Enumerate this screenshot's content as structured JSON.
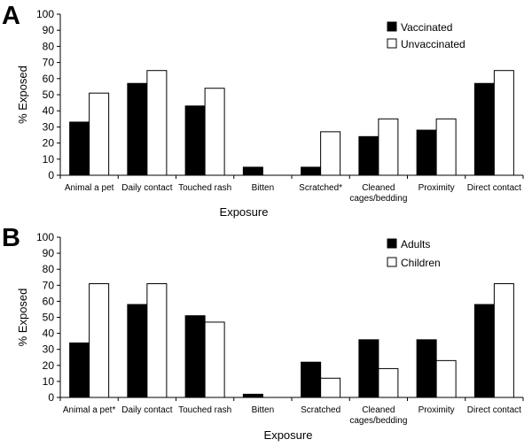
{
  "chart_data": [
    {
      "panel": "A",
      "type": "bar",
      "xlabel": "Exposure",
      "ylabel": "% Exposed",
      "ylim": [
        0,
        100
      ],
      "yticks": [
        0,
        10,
        20,
        30,
        40,
        50,
        60,
        70,
        80,
        90,
        100
      ],
      "grid": false,
      "legend_position": "top-right",
      "categories": [
        [
          "Animal a pet"
        ],
        [
          "Daily contact"
        ],
        [
          "Touched rash"
        ],
        [
          "Bitten"
        ],
        [
          "Scratched*"
        ],
        [
          "Cleaned",
          "cages/bedding"
        ],
        [
          "Proximity"
        ],
        [
          "Direct contact"
        ]
      ],
      "series": [
        {
          "name": "Vaccinated",
          "color": "#000000",
          "values": [
            33,
            57,
            43,
            5,
            5,
            24,
            28,
            57
          ]
        },
        {
          "name": "Unvaccinated",
          "color": "#ffffff",
          "values": [
            51,
            65,
            54,
            0,
            27,
            35,
            35,
            65
          ]
        }
      ]
    },
    {
      "panel": "B",
      "type": "bar",
      "xlabel": "Exposure",
      "ylabel": "% Exposed",
      "ylim": [
        0,
        100
      ],
      "yticks": [
        0,
        10,
        20,
        30,
        40,
        50,
        60,
        70,
        80,
        90,
        100
      ],
      "grid": false,
      "legend_position": "top-right",
      "categories": [
        [
          "Animal a pet*"
        ],
        [
          "Daily contact"
        ],
        [
          "Touched rash"
        ],
        [
          "Bitten"
        ],
        [
          "Scratched"
        ],
        [
          "Cleaned",
          "cages/bedding"
        ],
        [
          "Proximity"
        ],
        [
          "Direct contact"
        ]
      ],
      "series": [
        {
          "name": "Adults",
          "color": "#000000",
          "values": [
            34,
            58,
            51,
            2,
            22,
            36,
            36,
            58
          ]
        },
        {
          "name": "Children",
          "color": "#ffffff",
          "values": [
            71,
            71,
            47,
            0,
            12,
            18,
            23,
            71
          ]
        }
      ]
    }
  ]
}
